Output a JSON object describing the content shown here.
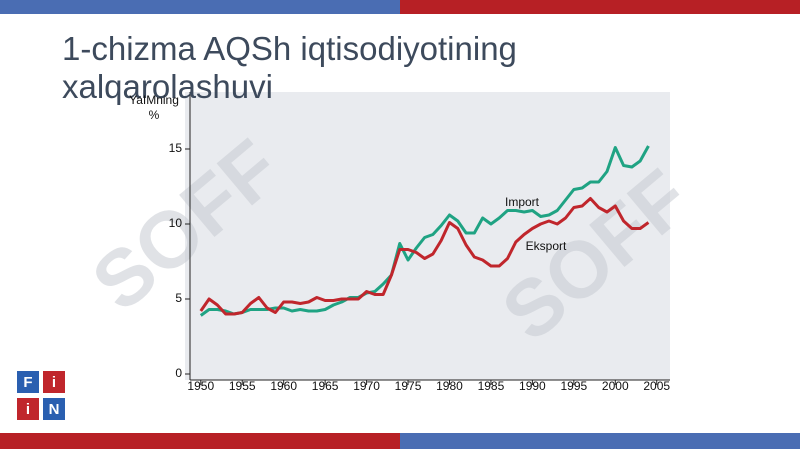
{
  "slide": {
    "title": "1-chizma AQSh iqtisodiyotining xalqarolashuvi",
    "watermark": "SOFF",
    "logo": [
      "F",
      "i",
      "i",
      "N"
    ]
  },
  "chart_data": {
    "type": "line",
    "ylabel": "YaIMning %",
    "x": [
      1950,
      1951,
      1952,
      1953,
      1954,
      1955,
      1956,
      1957,
      1958,
      1959,
      1960,
      1961,
      1962,
      1963,
      1964,
      1965,
      1966,
      1967,
      1968,
      1969,
      1970,
      1971,
      1972,
      1973,
      1974,
      1975,
      1976,
      1977,
      1978,
      1979,
      1980,
      1981,
      1982,
      1983,
      1984,
      1985,
      1986,
      1987,
      1988,
      1989,
      1990,
      1991,
      1992,
      1993,
      1994,
      1995,
      1996,
      1997,
      1998,
      1999,
      2000,
      2001,
      2002,
      2003,
      2004
    ],
    "series": [
      {
        "name": "Import",
        "color": "#1fa383",
        "values": [
          3.9,
          4.3,
          4.3,
          4.2,
          4.0,
          4.1,
          4.3,
          4.3,
          4.3,
          4.4,
          4.4,
          4.2,
          4.3,
          4.2,
          4.2,
          4.3,
          4.6,
          4.8,
          5.1,
          5.1,
          5.4,
          5.5,
          6.0,
          6.6,
          8.7,
          7.6,
          8.4,
          9.1,
          9.3,
          9.9,
          10.6,
          10.2,
          9.4,
          9.4,
          10.4,
          10.0,
          10.4,
          10.9,
          10.9,
          10.8,
          10.9,
          10.5,
          10.6,
          10.9,
          11.6,
          12.3,
          12.4,
          12.8,
          12.8,
          13.5,
          15.1,
          13.9,
          13.8,
          14.2,
          15.2
        ]
      },
      {
        "name": "Eksport",
        "color": "#c0262c",
        "values": [
          4.2,
          5.0,
          4.6,
          4.0,
          4.0,
          4.1,
          4.7,
          5.1,
          4.4,
          4.1,
          4.8,
          4.8,
          4.7,
          4.8,
          5.1,
          4.9,
          4.9,
          5.0,
          5.0,
          5.0,
          5.5,
          5.3,
          5.3,
          6.6,
          8.3,
          8.3,
          8.1,
          7.7,
          8.0,
          8.9,
          10.1,
          9.7,
          8.6,
          7.8,
          7.6,
          7.2,
          7.2,
          7.7,
          8.8,
          9.3,
          9.7,
          10.0,
          10.2,
          10.0,
          10.4,
          11.1,
          11.2,
          11.7,
          11.1,
          10.8,
          11.2,
          10.2,
          9.7,
          9.7,
          10.1
        ]
      }
    ],
    "xlim": [
      1948.7,
      2006.6
    ],
    "xticks": [
      1950,
      1955,
      1960,
      1965,
      1970,
      1975,
      1980,
      1985,
      1990,
      1995,
      2000,
      2005
    ],
    "ylim": [
      -0.4,
      18.8
    ],
    "yticks": [
      0,
      5,
      10,
      15
    ]
  }
}
